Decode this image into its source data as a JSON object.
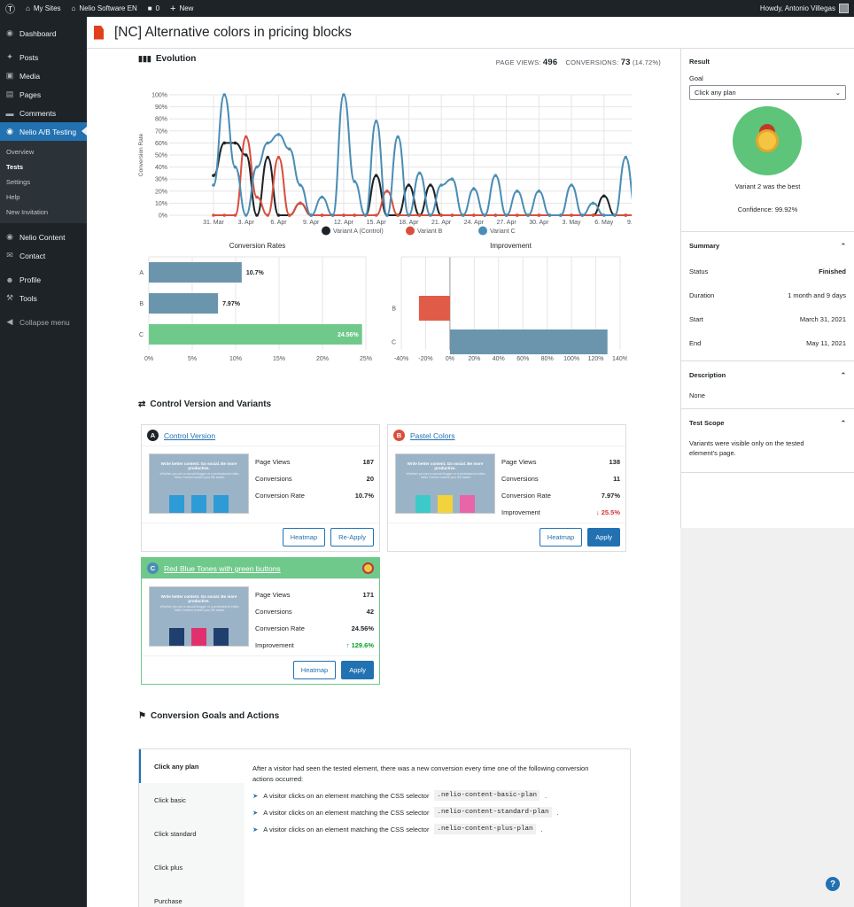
{
  "adminbar": {
    "my_sites": "My Sites",
    "site": "Nelio Software EN",
    "comments": "0",
    "new": "New",
    "howdy": "Howdy, Antonio Villegas"
  },
  "menu": {
    "dashboard": "Dashboard",
    "posts": "Posts",
    "media": "Media",
    "pages": "Pages",
    "comments": "Comments",
    "nelio": "Nelio A/B Testing",
    "sub": [
      "Overview",
      "Tests",
      "Settings",
      "Help",
      "New Invitation"
    ],
    "nelio_content": "Nelio Content",
    "contact": "Contact",
    "profile": "Profile",
    "tools": "Tools",
    "collapse": "Collapse menu"
  },
  "page": {
    "title": "[NC] Alternative colors in pricing blocks"
  },
  "evolution": {
    "title": "Evolution",
    "page_views_label": "PAGE VIEWS:",
    "page_views": "496",
    "conversions_label": "CONVERSIONS:",
    "conversions": "73",
    "conversion_pct": "(14.72%)"
  },
  "chart_data": [
    {
      "type": "line",
      "title": "Evolution",
      "ylabel": "Conversion Rate",
      "ylim": [
        0,
        100
      ],
      "yticks": [
        "0%",
        "10%",
        "20%",
        "30%",
        "40%",
        "50%",
        "60%",
        "70%",
        "80%",
        "90%",
        "100%"
      ],
      "x": [
        "31. Mar",
        "1. Apr",
        "2. Apr",
        "3. Apr",
        "4. Apr",
        "5. Apr",
        "6. Apr",
        "7. Apr",
        "8. Apr",
        "9. Apr",
        "10. Apr",
        "11. Apr",
        "12. Apr",
        "13. Apr",
        "14. Apr",
        "15. Apr",
        "16. Apr",
        "17. Apr",
        "18. Apr",
        "19. Apr",
        "20. Apr",
        "21. Apr",
        "22. Apr",
        "23. Apr",
        "24. Apr",
        "25. Apr",
        "26. Apr",
        "27. Apr",
        "28. Apr",
        "29. Apr",
        "30. Apr",
        "1. May",
        "2. May",
        "3. May",
        "4. May",
        "5. May",
        "6. May",
        "7. May",
        "8. May",
        "9. May",
        "10. May",
        "11. May"
      ],
      "xticks": [
        "31. Mar",
        "3. Apr",
        "6. Apr",
        "9. Apr",
        "12. Apr",
        "15. Apr",
        "18. Apr",
        "21. Apr",
        "24. Apr",
        "27. Apr",
        "30. Apr",
        "3. May",
        "6. May",
        "9. May"
      ],
      "series": [
        {
          "name": "Variant A (Control)",
          "color": "#1d2327",
          "values": [
            33,
            60,
            60,
            50,
            0,
            48,
            0,
            0,
            10,
            0,
            0,
            0,
            0,
            0,
            0,
            33,
            0,
            0,
            25,
            0,
            25,
            0,
            0,
            0,
            0,
            0,
            0,
            0,
            0,
            0,
            0,
            0,
            0,
            0,
            0,
            0,
            16,
            0,
            0,
            0,
            0,
            0
          ]
        },
        {
          "name": "Variant B",
          "color": "#d94f3d",
          "values": [
            0,
            0,
            0,
            65,
            15,
            0,
            48,
            0,
            10,
            0,
            0,
            0,
            0,
            0,
            0,
            0,
            20,
            0,
            0,
            0,
            0,
            0,
            0,
            0,
            0,
            0,
            0,
            0,
            0,
            0,
            0,
            0,
            0,
            0,
            0,
            0,
            0,
            0,
            0,
            0,
            0,
            0
          ]
        },
        {
          "name": "Variant C",
          "color": "#4a8db5",
          "values": [
            25,
            100,
            40,
            0,
            40,
            60,
            67,
            55,
            25,
            0,
            15,
            0,
            100,
            28,
            0,
            78,
            0,
            65,
            0,
            35,
            0,
            25,
            30,
            0,
            22,
            0,
            33,
            0,
            20,
            0,
            20,
            0,
            0,
            25,
            0,
            10,
            0,
            0,
            48,
            0,
            25,
            0
          ]
        }
      ]
    },
    {
      "type": "bar",
      "title": "Conversion Rates",
      "categories": [
        "A",
        "B",
        "C"
      ],
      "values": [
        10.7,
        7.97,
        24.56
      ],
      "value_labels": [
        "10.7%",
        "7.97%",
        "24.56%"
      ],
      "xlim": [
        0,
        25
      ],
      "xticks": [
        "0%",
        "5%",
        "10%",
        "15%",
        "20%",
        "25%"
      ],
      "colors": [
        "#6b95ad",
        "#6b95ad",
        "#6fc98a"
      ]
    },
    {
      "type": "bar",
      "title": "Improvement",
      "categories": [
        "B",
        "C"
      ],
      "values": [
        -25.5,
        129.6
      ],
      "xlim": [
        -40,
        140
      ],
      "xticks": [
        "-40%",
        "-20%",
        "0%",
        "20%",
        "40%",
        "60%",
        "80%",
        "100%",
        "120%",
        "140%"
      ],
      "colors": [
        "#e05c48",
        "#6b95ad"
      ]
    }
  ],
  "variants_title": "Control Version and Variants",
  "variants": [
    {
      "letter": "A",
      "name": "Control Version",
      "color": "#1d2327",
      "page_views_label": "Page Views",
      "page_views": "187",
      "conversions_label": "Conversions",
      "conversions": "20",
      "rate_label": "Conversion Rate",
      "rate": "10.7%",
      "buttons": [
        "Heatmap",
        "Re-Apply"
      ],
      "thumb_title": "Write better content. Go social. Be more productive.",
      "thumb_sub": "Whether you are a casual blogger or a professional editor, Nelio Content makes your life easier.",
      "prices": [
        "9",
        "19",
        "29"
      ]
    },
    {
      "letter": "B",
      "name": "Pastel Colors",
      "color": "#d94f3d",
      "page_views_label": "Page Views",
      "page_views": "138",
      "conversions_label": "Conversions",
      "conversions": "11",
      "rate_label": "Conversion Rate",
      "rate": "7.97%",
      "improvement_label": "Improvement",
      "improvement": "25.5%",
      "buttons": [
        "Heatmap",
        "Apply"
      ],
      "thumb_title": "Write better content. Go social. Be more productive.",
      "thumb_sub": "Whether you are a casual blogger or a professional editor, Nelio Content makes your life easier.",
      "prices": [
        "9",
        "19",
        "29"
      ]
    },
    {
      "letter": "C",
      "name": "Red Blue Tones with green buttons",
      "color": "#4a8db5",
      "page_views_label": "Page Views",
      "page_views": "171",
      "conversions_label": "Conversions",
      "conversions": "42",
      "rate_label": "Conversion Rate",
      "rate": "24.56%",
      "improvement_label": "Improvement",
      "improvement": "129.6%",
      "buttons": [
        "Heatmap",
        "Apply"
      ],
      "thumb_title": "Write better content. Go social. Be more productive.",
      "thumb_sub": "Whether you are a casual blogger or a professional editor, Nelio Content makes your life easier.",
      "prices": [
        "9",
        "19",
        "29"
      ]
    }
  ],
  "result": {
    "title": "Result",
    "goal_label": "Goal",
    "goal_value": "Click any plan",
    "winner": "Variant 2 was the best",
    "confidence": "Confidence: 99.92%"
  },
  "summary": {
    "title": "Summary",
    "status_label": "Status",
    "status": "Finished",
    "duration_label": "Duration",
    "duration": "1 month and 9 days",
    "start_label": "Start",
    "start": "March 31, 2021",
    "end_label": "End",
    "end": "May 11, 2021"
  },
  "description": {
    "title": "Description",
    "value": "None"
  },
  "scope": {
    "title": "Test Scope",
    "value": "Variants were visible only on the tested element's page."
  },
  "goals": {
    "title": "Conversion Goals and Actions",
    "tabs": [
      "Click any plan",
      "Click basic",
      "Click standard",
      "Click plus",
      "Purchase"
    ],
    "desc": "After a visitor had seen the tested element, there was a new conversion every time one of the following conversion actions occurred:",
    "action_text": "A visitor clicks on an element matching the CSS selector",
    "selectors": [
      ".nelio-content-basic-plan",
      ".nelio-content-standard-plan",
      ".nelio-content-plus-plan"
    ]
  },
  "icons": {
    "wp": "wordpress-icon",
    "help": "help-icon"
  }
}
